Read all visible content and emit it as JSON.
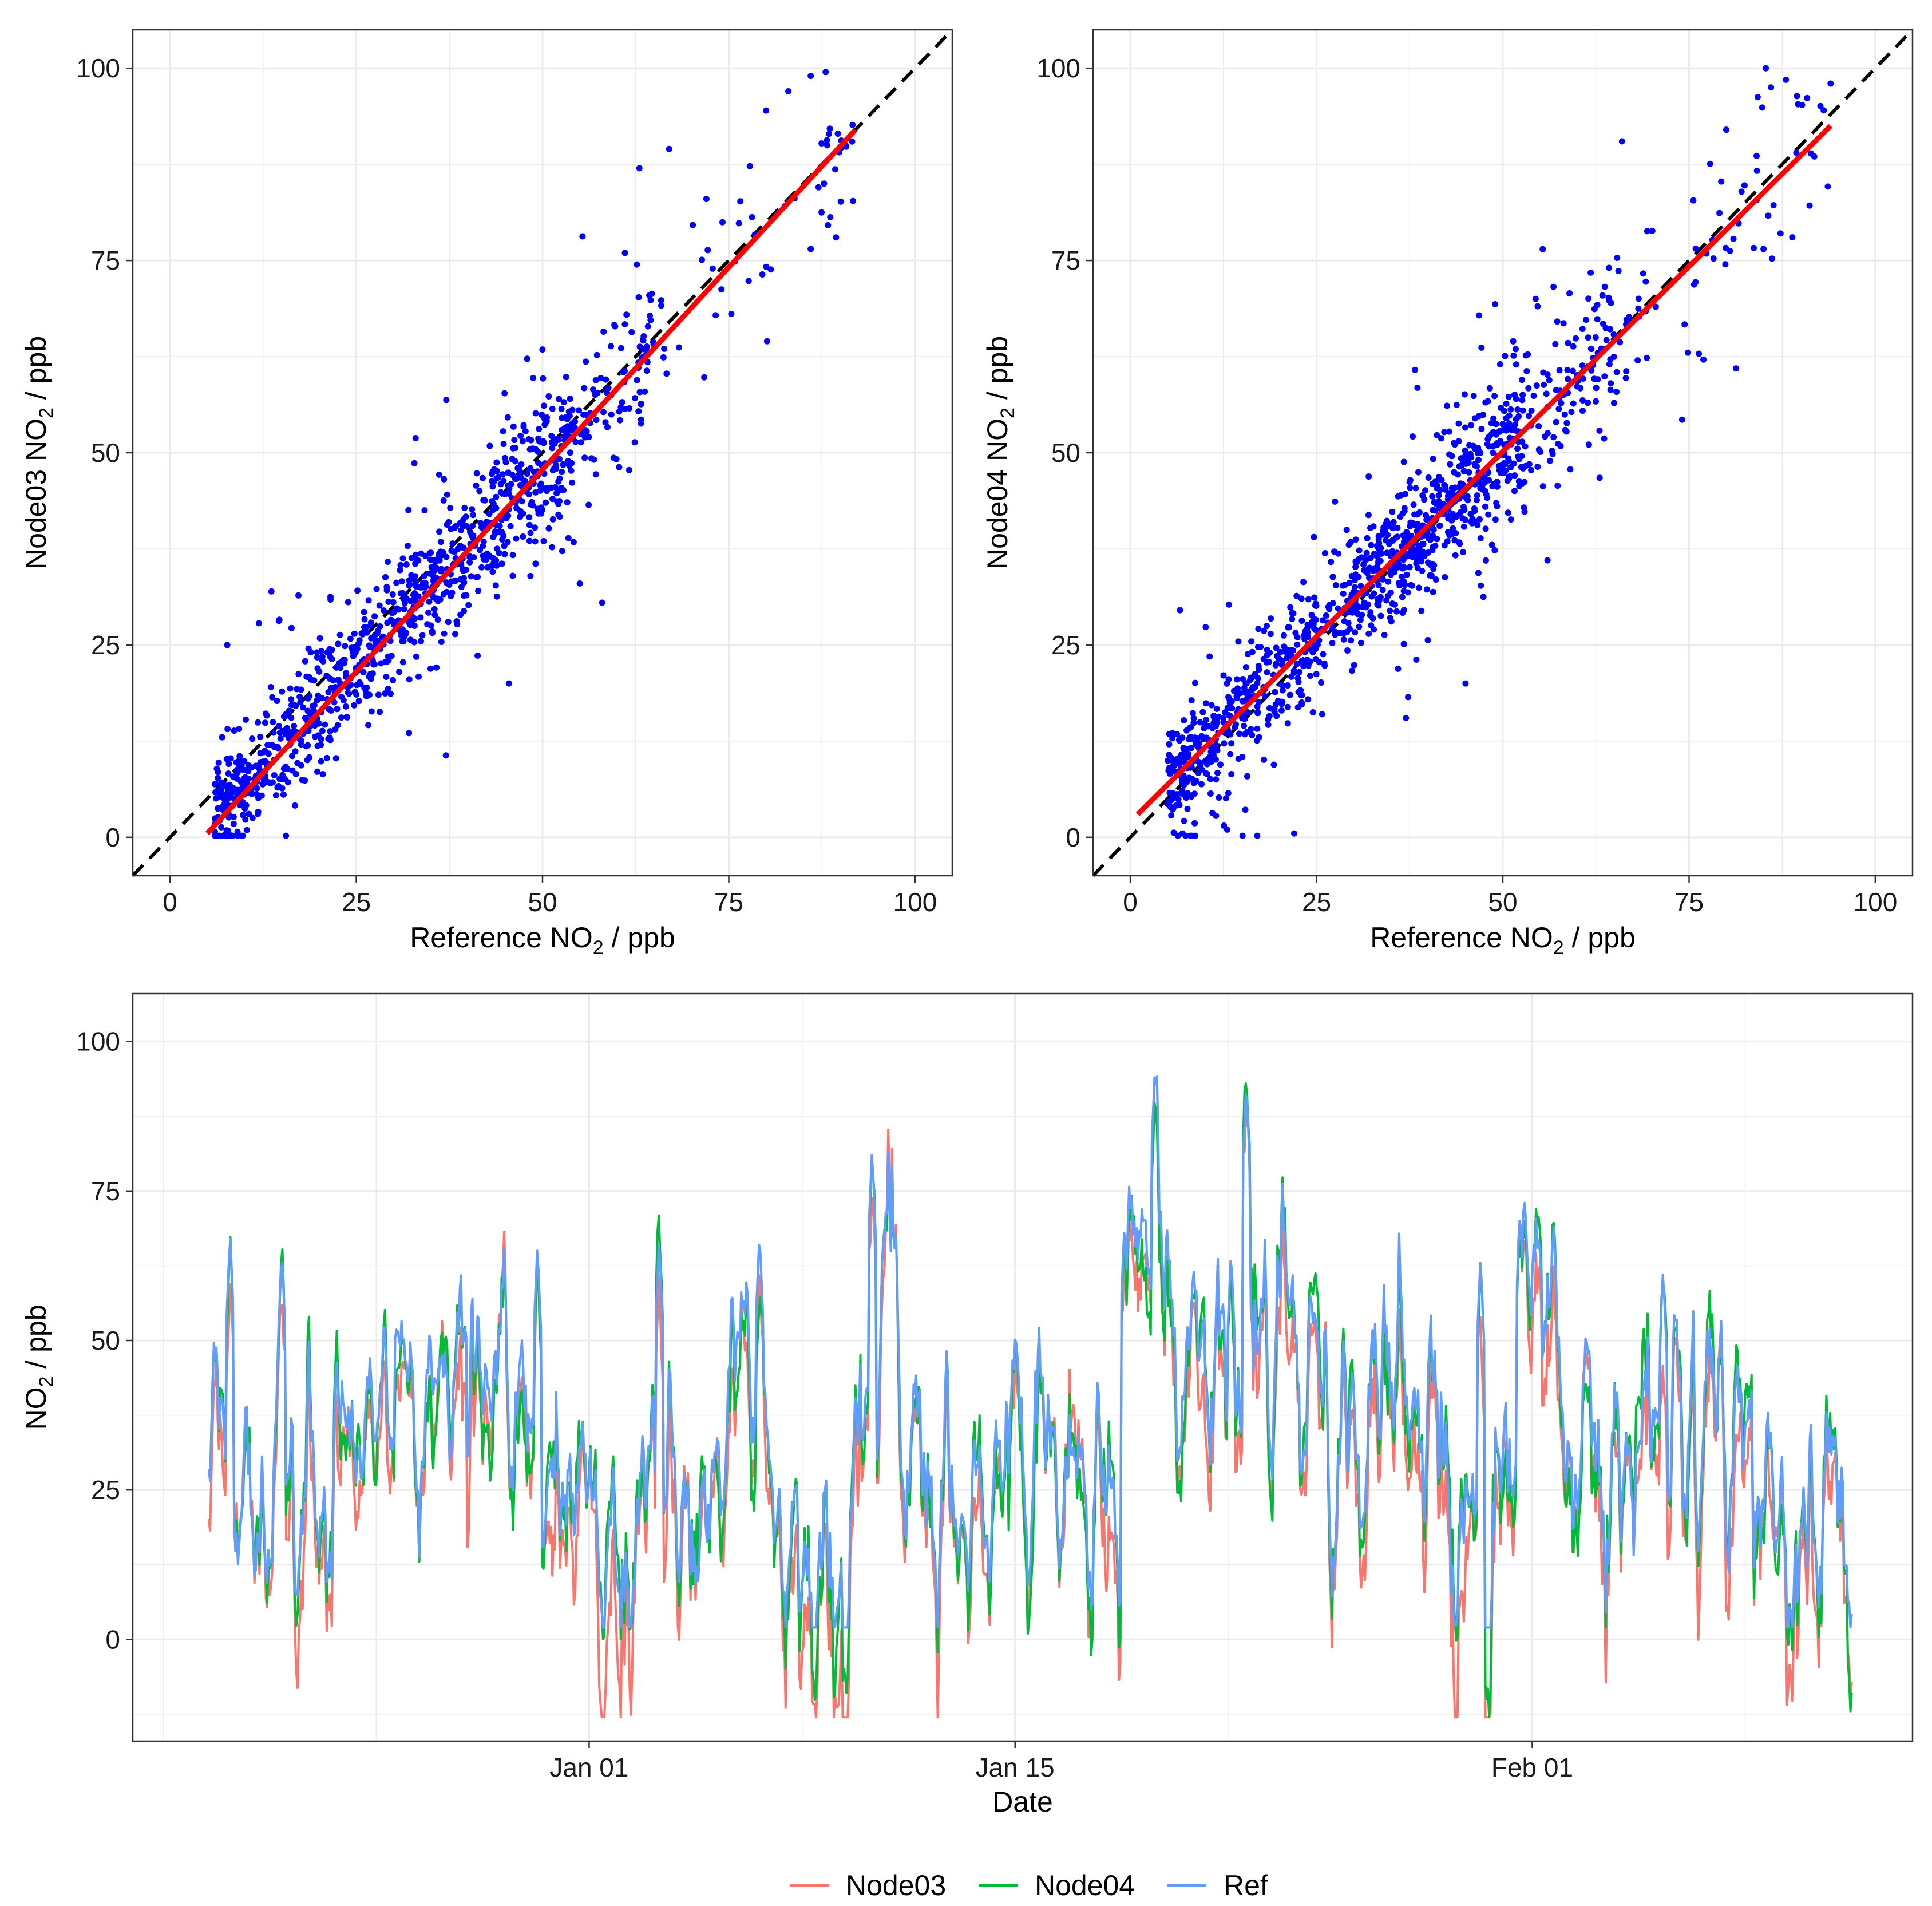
{
  "colors": {
    "point": "#0000FF",
    "fit_line": "#FF0000",
    "identity_line": "#000000",
    "grid": "#EBEBEB",
    "panel_border": "#333333",
    "Node03": "#F8766D",
    "Node04": "#00BA38",
    "Ref": "#619CFF"
  },
  "chart_data": [
    {
      "type": "scatter",
      "id": "scatter-node03",
      "xlabel_main": "Reference NO",
      "xlabel_sub": "2",
      "xlabel_rest": " / ppb",
      "ylabel_main": "Node03 NO",
      "ylabel_sub": "2",
      "ylabel_rest": " / ppb",
      "xlim": [
        -5,
        105
      ],
      "ylim": [
        -5,
        105
      ],
      "x_ticks": [
        0,
        25,
        50,
        75,
        100
      ],
      "y_ticks": [
        0,
        25,
        50,
        75,
        100
      ],
      "x_tick_labels": [
        "0",
        "25",
        "50",
        "75",
        "100"
      ],
      "y_tick_labels": [
        "0",
        "25",
        "50",
        "75",
        "100"
      ],
      "identity_line": {
        "slope": 1,
        "intercept": 0,
        "style": "dashed"
      },
      "fit_line": {
        "x": [
          5,
          92
        ],
        "y": [
          0.5,
          92
        ]
      },
      "point_count": 1100,
      "point_model": {
        "slope": 1.03,
        "intercept": -3.5,
        "noise_sd": 5.0
      },
      "x_range_observed": [
        2,
        92
      ],
      "extreme_points": [
        [
          88,
          99.5
        ],
        [
          86,
          99
        ],
        [
          83,
          97
        ],
        [
          80,
          94.5
        ],
        [
          67,
          89.5
        ],
        [
          63,
          87
        ],
        [
          72,
          83
        ],
        [
          86,
          76.5
        ],
        [
          58,
          30.5
        ],
        [
          45.5,
          20
        ],
        [
          46,
          34
        ],
        [
          55,
          33
        ]
      ]
    },
    {
      "type": "scatter",
      "id": "scatter-node04",
      "xlabel_main": "Reference NO",
      "xlabel_sub": "2",
      "xlabel_rest": " / ppb",
      "ylabel_main": "Node04 NO",
      "ylabel_sub": "2",
      "ylabel_rest": " / ppb",
      "xlim": [
        -5,
        105
      ],
      "ylim": [
        -5,
        105
      ],
      "x_ticks": [
        0,
        25,
        50,
        75,
        100
      ],
      "y_ticks": [
        0,
        25,
        50,
        75,
        100
      ],
      "x_tick_labels": [
        "0",
        "25",
        "50",
        "75",
        "100"
      ],
      "y_tick_labels": [
        "0",
        "25",
        "50",
        "75",
        "100"
      ],
      "identity_line": {
        "slope": 1,
        "intercept": 0,
        "style": "dashed"
      },
      "fit_line": {
        "x": [
          1,
          94
        ],
        "y": [
          3,
          92.5
        ]
      },
      "point_count": 1200,
      "point_model": {
        "slope": 0.96,
        "intercept": 2.2,
        "noise_sd": 5.0
      },
      "x_range_observed": [
        1,
        94
      ],
      "extreme_points": [
        [
          88,
          98.5
        ],
        [
          94,
          98
        ],
        [
          86,
          97.5
        ],
        [
          80,
          92
        ],
        [
          66,
          90.5
        ],
        [
          85,
          76.5
        ],
        [
          56,
          36
        ],
        [
          45,
          20
        ],
        [
          22,
          0.5
        ],
        [
          7,
          0.5
        ],
        [
          37,
          15.5
        ],
        [
          13,
          1
        ]
      ]
    },
    {
      "type": "line",
      "id": "timeseries",
      "xlabel": "Date",
      "ylabel_main": "NO",
      "ylabel_sub": "2",
      "ylabel_rest": " / ppb",
      "x_domain_days": [
        -15,
        43.5
      ],
      "ylim": [
        -17,
        108
      ],
      "x_ticks_days": [
        0,
        14,
        31
      ],
      "x_minor_days": [
        -14,
        -7,
        7,
        21,
        38
      ],
      "x_tick_labels": [
        "Jan 01",
        "Jan 15",
        "Feb 01"
      ],
      "y_ticks": [
        0,
        25,
        50,
        75,
        100
      ],
      "y_tick_labels": [
        "0",
        "25",
        "50",
        "75",
        "100"
      ],
      "x_start_day": -12.5,
      "x_end_day": 41.5,
      "points_per_day": 24,
      "series": [
        {
          "name": "Node03",
          "offset": -5.0,
          "noise": 4.5
        },
        {
          "name": "Node04",
          "offset": -1.0,
          "noise": 4.0
        },
        {
          "name": "Ref",
          "offset": 0.0,
          "noise": 0.0
        }
      ],
      "ref_daily_levels": [
        [
          -12.5,
          40
        ],
        [
          -11,
          22
        ],
        [
          -9.5,
          20
        ],
        [
          -8,
          33
        ],
        [
          -7,
          40
        ],
        [
          -5,
          38
        ],
        [
          -4,
          42
        ],
        [
          -3,
          45
        ],
        [
          -2,
          40
        ],
        [
          -1.5,
          15
        ],
        [
          -0.5,
          24
        ],
        [
          0.5,
          10
        ],
        [
          1.5,
          20
        ],
        [
          2.3,
          45
        ],
        [
          3,
          20
        ],
        [
          4,
          16
        ],
        [
          5,
          55
        ],
        [
          6,
          30
        ],
        [
          7,
          10
        ],
        [
          8,
          12
        ],
        [
          9,
          30
        ],
        [
          10,
          60
        ],
        [
          11,
          25
        ],
        [
          12,
          20
        ],
        [
          13,
          12
        ],
        [
          14,
          40
        ],
        [
          15,
          28
        ],
        [
          16,
          30
        ],
        [
          17,
          15
        ],
        [
          17.8,
          55
        ],
        [
          18.5,
          70
        ],
        [
          19.5,
          45
        ],
        [
          20.5,
          50
        ],
        [
          21.5,
          40
        ],
        [
          22.5,
          58
        ],
        [
          23.5,
          52
        ],
        [
          24.5,
          35
        ],
        [
          25.5,
          30
        ],
        [
          26.5,
          52
        ],
        [
          27.5,
          30
        ],
        [
          28.5,
          15
        ],
        [
          29.5,
          15
        ],
        [
          30.5,
          45
        ],
        [
          31,
          55
        ],
        [
          32,
          40
        ],
        [
          33,
          40
        ],
        [
          34,
          22
        ],
        [
          35,
          30
        ],
        [
          36,
          38
        ],
        [
          37,
          32
        ],
        [
          38,
          38
        ],
        [
          39,
          18
        ],
        [
          40,
          20
        ],
        [
          41,
          22
        ],
        [
          41.5,
          9
        ]
      ],
      "spikes": [
        [
          -11.8,
          68
        ],
        [
          -10.1,
          65
        ],
        [
          -7.2,
          48
        ],
        [
          -3.4,
          48
        ],
        [
          -1.7,
          66
        ],
        [
          2.3,
          67
        ],
        [
          5.6,
          68
        ],
        [
          9.3,
          82
        ],
        [
          17.6,
          70
        ],
        [
          18.6,
          96
        ],
        [
          19.1,
          60
        ],
        [
          21.6,
          93
        ],
        [
          21.1,
          65
        ],
        [
          29.3,
          64
        ],
        [
          30.6,
          72
        ],
        [
          31.7,
          70
        ],
        [
          35.3,
          62
        ],
        [
          30.9,
          60
        ]
      ]
    }
  ],
  "legend": {
    "items": [
      {
        "key": "Node03",
        "label": "Node03"
      },
      {
        "key": "Node04",
        "label": "Node04"
      },
      {
        "key": "Ref",
        "label": "Ref"
      }
    ]
  }
}
